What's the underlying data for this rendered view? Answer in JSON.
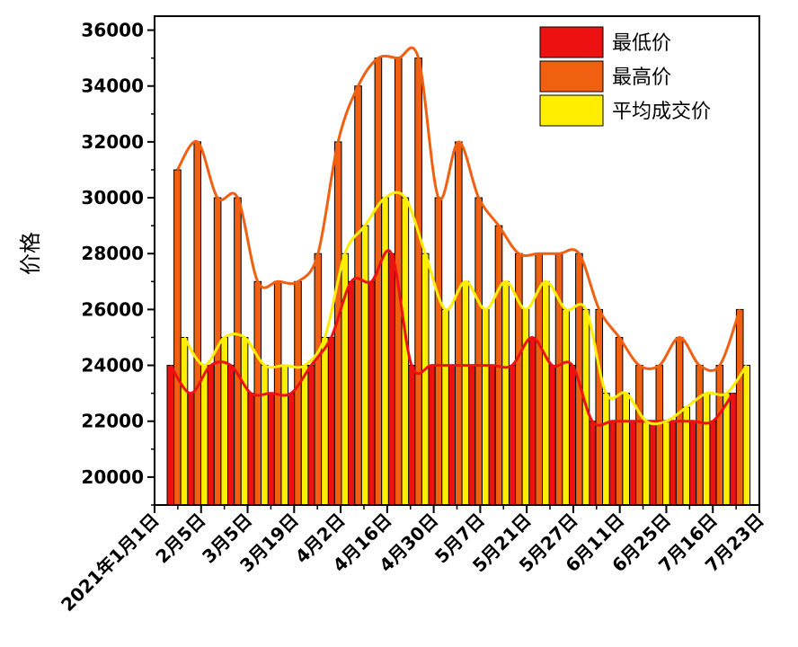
{
  "chart_data": {
    "type": "bar",
    "ylabel": "价格",
    "xlabel": "",
    "title": "",
    "ylim": [
      19000,
      36500
    ],
    "yticks": [
      20000,
      22000,
      24000,
      26000,
      28000,
      30000,
      32000,
      34000,
      36000
    ],
    "x_tick_labels": [
      "2021年1月1日",
      "2月5日",
      "3月5日",
      "3月19日",
      "4月2日",
      "4月16日",
      "4月30日",
      "5月7日",
      "5月21日",
      "5月27日",
      "6月11日",
      "6月25日",
      "7月16日",
      "7月23日"
    ],
    "bar_groups": 29,
    "series": [
      {
        "name": "最低价",
        "color": "#ee1111",
        "values": [
          24000,
          23000,
          24000,
          24000,
          23000,
          23000,
          23000,
          24000,
          25000,
          27000,
          27000,
          28000,
          24000,
          24000,
          24000,
          24000,
          24000,
          24000,
          25000,
          24000,
          24000,
          22000,
          22000,
          22000,
          22000,
          22000,
          22000,
          22000,
          23000
        ]
      },
      {
        "name": "最高价",
        "color": "#f06010",
        "values": [
          31000,
          32000,
          30000,
          30000,
          27000,
          27000,
          27000,
          28000,
          32000,
          34000,
          35000,
          35000,
          35000,
          30000,
          32000,
          30000,
          29000,
          28000,
          28000,
          28000,
          28000,
          26000,
          25000,
          24000,
          24000,
          25000,
          24000,
          24000,
          26000
        ]
      },
      {
        "name": "平均成交价",
        "color": "#ffee00",
        "values": [
          25000,
          24000,
          25000,
          25000,
          24000,
          24000,
          24000,
          25000,
          28000,
          29000,
          30000,
          30000,
          28000,
          26000,
          27000,
          26000,
          27000,
          26000,
          27000,
          26000,
          26000,
          23000,
          23000,
          22000,
          22000,
          22500,
          23000,
          23000,
          24000
        ]
      }
    ],
    "legend_position": "top-right",
    "grid": false
  }
}
